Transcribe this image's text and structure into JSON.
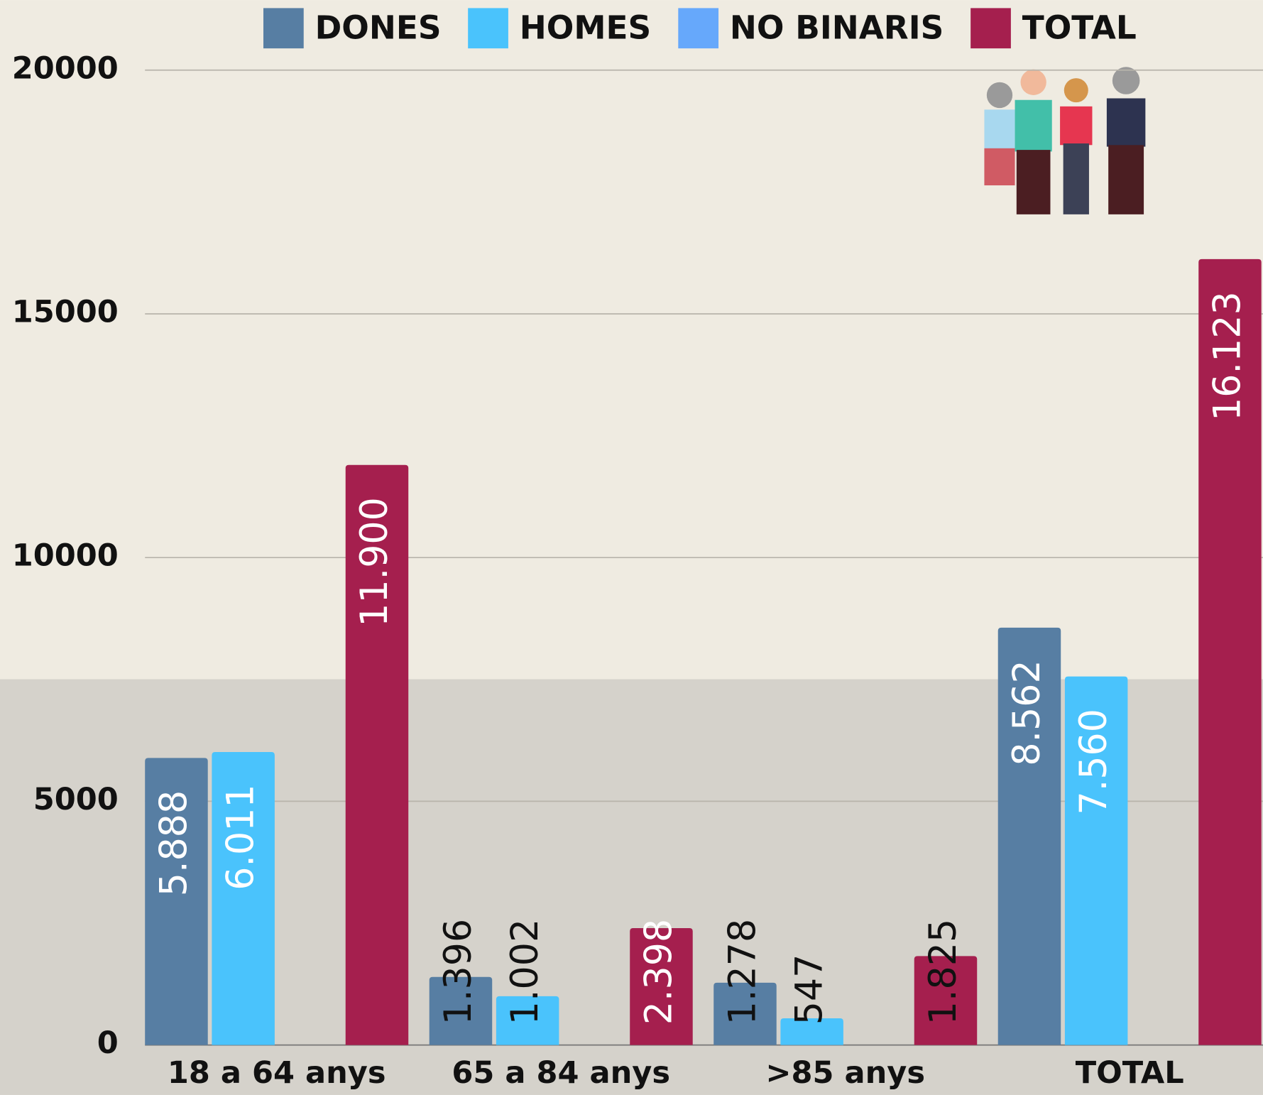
{
  "chart_data": {
    "type": "bar",
    "categories": [
      "18 a 64 anys",
      "65 a 84 anys",
      ">85 anys",
      "TOTAL"
    ],
    "series": [
      {
        "name": "DONES",
        "color": "#577ea3",
        "values": [
          5888,
          1396,
          1278,
          8562
        ],
        "value_labels": [
          "5.888",
          "1.396",
          "1.278",
          "8.562"
        ]
      },
      {
        "name": "HOMES",
        "color": "#4ac3fc",
        "values": [
          6011,
          1002,
          547,
          7560
        ],
        "value_labels": [
          "6.011",
          "1.002",
          "547",
          "7.560"
        ]
      },
      {
        "name": "NO BINARIS",
        "color": "#66a8fb",
        "values": [
          0,
          0,
          0,
          0
        ]
      },
      {
        "name": "TOTAL",
        "color": "#a51f4e",
        "values": [
          11900,
          2398,
          1825,
          16123
        ],
        "value_labels": [
          "11.900",
          "2.398",
          "1.825",
          "16.123"
        ]
      }
    ],
    "ylim": [
      0,
      20000
    ],
    "yticks": [
      0,
      5000,
      10000,
      15000,
      20000
    ],
    "grid": true,
    "legend": "top"
  }
}
